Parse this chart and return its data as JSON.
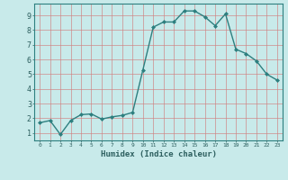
{
  "x": [
    0,
    1,
    2,
    3,
    4,
    5,
    6,
    7,
    8,
    9,
    10,
    11,
    12,
    13,
    14,
    15,
    16,
    17,
    18,
    19,
    20,
    21,
    22,
    23
  ],
  "y": [
    1.7,
    1.85,
    0.9,
    1.85,
    2.25,
    2.3,
    1.95,
    2.1,
    2.2,
    2.4,
    5.3,
    8.2,
    8.55,
    8.55,
    9.3,
    9.3,
    8.9,
    8.3,
    9.1,
    6.7,
    6.4,
    5.9,
    5.0,
    4.6
  ],
  "line_color": "#2d7f7f",
  "marker": "D",
  "marker_size": 2.0,
  "bg_color": "#c8eaea",
  "grid_color": "#d08080",
  "xlabel": "Humidex (Indice chaleur)",
  "xlim": [
    -0.5,
    23.5
  ],
  "ylim": [
    0.5,
    9.8
  ],
  "yticks": [
    1,
    2,
    3,
    4,
    5,
    6,
    7,
    8,
    9
  ],
  "xticks": [
    0,
    1,
    2,
    3,
    4,
    5,
    6,
    7,
    8,
    9,
    10,
    11,
    12,
    13,
    14,
    15,
    16,
    17,
    18,
    19,
    20,
    21,
    22,
    23
  ],
  "xlabel_color": "#2d5f5f",
  "tick_color": "#2d5f5f",
  "axis_color": "#2d7f7f",
  "xlabel_fontsize": 6.5,
  "xtick_fontsize": 4.5,
  "ytick_fontsize": 6.0,
  "linewidth": 1.0
}
